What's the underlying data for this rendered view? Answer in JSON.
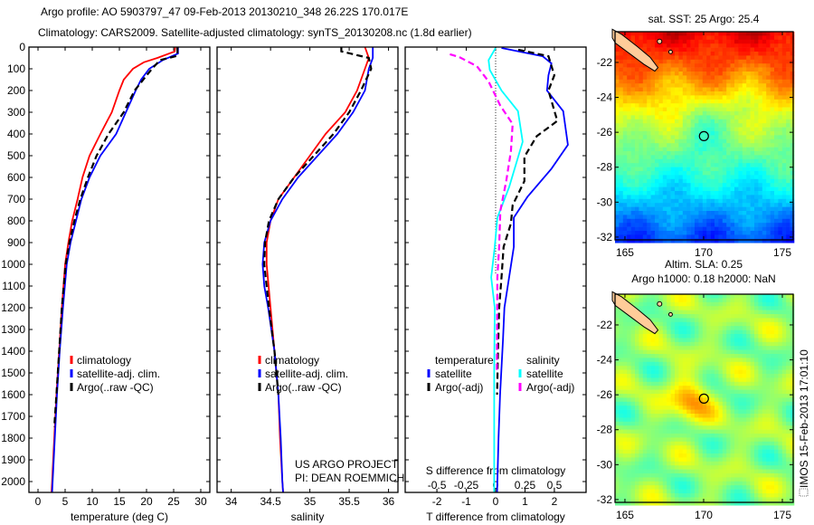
{
  "title": {
    "line1": "Argo profile: AO 5903797_47 09-Feb-2013 20130210_348 26.22S 170.017E",
    "line2": "Climatology: CARS2009. Satellite-adjusted climatology: synTS_20130208.nc (1.8d earlier)"
  },
  "credit": {
    "line1": "US ARGO PROJECT",
    "line2": "PI: DEAN ROEMMICH"
  },
  "timestamp": "IMOS 15-Feb-2013 17:01:10",
  "colors": {
    "climatology": "#ff0000",
    "satellite": "#0000ff",
    "argo": "#000000",
    "sal_satellite": "#00ffff",
    "sal_argo": "#ff00ff"
  },
  "chart_data": [
    {
      "type": "line",
      "xlabel": "temperature (deg C)",
      "xlim": [
        -1.67,
        31.67
      ],
      "ylim": [
        2050,
        0
      ],
      "xticks": [
        "0",
        "5",
        "10",
        "15",
        "20",
        "25",
        "30"
      ],
      "yticks": [
        "0",
        "100",
        "200",
        "300",
        "400",
        "500",
        "600",
        "700",
        "800",
        "900",
        "1000",
        "1100",
        "1200",
        "1300",
        "1400",
        "1500",
        "1600",
        "1700",
        "1800",
        "1900",
        "2000"
      ],
      "legend": [
        "climatology",
        "satellite-adj. clim.",
        "Argo(..raw -QC)"
      ],
      "series": [
        {
          "name": "climatology",
          "color": "#ff0000",
          "dash": false,
          "points": [
            [
              25.3,
              0
            ],
            [
              25.2,
              20
            ],
            [
              22,
              50
            ],
            [
              19.5,
              70
            ],
            [
              17.5,
              100
            ],
            [
              15.8,
              150
            ],
            [
              15,
              200
            ],
            [
              13.6,
              300
            ],
            [
              11.5,
              400
            ],
            [
              9.5,
              500
            ],
            [
              8.2,
              600
            ],
            [
              7.3,
              700
            ],
            [
              6.3,
              800
            ],
            [
              5.6,
              900
            ],
            [
              5.0,
              1000
            ],
            [
              4.4,
              1200
            ],
            [
              3.9,
              1400
            ],
            [
              3.4,
              1600
            ],
            [
              3.0,
              1800
            ],
            [
              2.6,
              2000
            ],
            [
              2.5,
              2050
            ]
          ]
        },
        {
          "name": "satellite-adj. clim.",
          "color": "#0000ff",
          "dash": false,
          "points": [
            [
              25.8,
              0
            ],
            [
              25.8,
              30
            ],
            [
              23,
              60
            ],
            [
              20.5,
              100
            ],
            [
              19,
              150
            ],
            [
              18,
              200
            ],
            [
              16.2,
              300
            ],
            [
              14.4,
              400
            ],
            [
              11.5,
              500
            ],
            [
              9.5,
              600
            ],
            [
              8,
              700
            ],
            [
              7,
              800
            ],
            [
              6,
              900
            ],
            [
              5.3,
              1000
            ],
            [
              4.6,
              1200
            ],
            [
              4.0,
              1400
            ],
            [
              3.5,
              1600
            ],
            [
              3.1,
              1800
            ],
            [
              2.7,
              2000
            ],
            [
              2.6,
              2050
            ]
          ]
        },
        {
          "name": "Argo(..raw -QC)",
          "color": "#000000",
          "dash": true,
          "points": [
            [
              25.7,
              0
            ],
            [
              25.7,
              40
            ],
            [
              22.5,
              60
            ],
            [
              21,
              100
            ],
            [
              17.8,
              200
            ],
            [
              15.8,
              300
            ],
            [
              13,
              400
            ],
            [
              10.8,
              500
            ],
            [
              9.2,
              600
            ],
            [
              7.8,
              700
            ],
            [
              6.7,
              800
            ],
            [
              5.8,
              900
            ],
            [
              5.1,
              1000
            ],
            [
              4.4,
              1200
            ],
            [
              3.9,
              1400
            ],
            [
              3.4,
              1600
            ],
            [
              3.0,
              1750
            ]
          ]
        }
      ]
    },
    {
      "type": "line",
      "xlabel": "salinity",
      "xlim": [
        33.82,
        36.12
      ],
      "ylim": [
        2050,
        0
      ],
      "xticks": [
        "34",
        "34.5",
        "35",
        "35.5",
        "36"
      ],
      "legend": [
        "climatology",
        "satellite-adj. clim.",
        "Argo(..raw -QC)"
      ],
      "series": [
        {
          "name": "climatology",
          "color": "#ff0000",
          "dash": false,
          "points": [
            [
              35.7,
              0
            ],
            [
              35.75,
              50
            ],
            [
              35.7,
              100
            ],
            [
              35.6,
              200
            ],
            [
              35.45,
              300
            ],
            [
              35.2,
              400
            ],
            [
              35.0,
              500
            ],
            [
              34.8,
              600
            ],
            [
              34.6,
              700
            ],
            [
              34.5,
              800
            ],
            [
              34.45,
              900
            ],
            [
              34.45,
              1000
            ],
            [
              34.5,
              1200
            ],
            [
              34.55,
              1400
            ],
            [
              34.6,
              1600
            ],
            [
              34.62,
              1800
            ],
            [
              34.65,
              2000
            ],
            [
              34.66,
              2050
            ]
          ]
        },
        {
          "name": "satellite-adj. clim.",
          "color": "#0000ff",
          "dash": false,
          "points": [
            [
              35.8,
              0
            ],
            [
              35.8,
              50
            ],
            [
              35.75,
              100
            ],
            [
              35.7,
              200
            ],
            [
              35.55,
              300
            ],
            [
              35.35,
              400
            ],
            [
              35.1,
              500
            ],
            [
              34.85,
              600
            ],
            [
              34.65,
              700
            ],
            [
              34.5,
              800
            ],
            [
              34.42,
              900
            ],
            [
              34.4,
              1000
            ],
            [
              34.42,
              1100
            ],
            [
              34.47,
              1200
            ],
            [
              34.55,
              1400
            ],
            [
              34.6,
              1600
            ],
            [
              34.63,
              1800
            ],
            [
              34.65,
              2000
            ],
            [
              34.66,
              2050
            ]
          ]
        },
        {
          "name": "Argo(..raw -QC)",
          "color": "#000000",
          "dash": true,
          "points": [
            [
              35.4,
              0
            ],
            [
              35.4,
              20
            ],
            [
              35.75,
              50
            ],
            [
              35.78,
              100
            ],
            [
              35.65,
              200
            ],
            [
              35.5,
              300
            ],
            [
              35.3,
              400
            ],
            [
              35.05,
              500
            ],
            [
              34.8,
              600
            ],
            [
              34.6,
              700
            ],
            [
              34.48,
              800
            ],
            [
              34.43,
              900
            ],
            [
              34.42,
              1000
            ],
            [
              34.48,
              1200
            ],
            [
              34.55,
              1400
            ],
            [
              34.6,
              1600
            ]
          ]
        }
      ]
    },
    {
      "type": "line",
      "xlabel": "T difference from climatology",
      "xlabel2": "S difference from climatology",
      "xlim": [
        -3.08,
        3.08
      ],
      "xlim_s": [
        -0.77,
        0.77
      ],
      "ylim": [
        2050,
        0
      ],
      "xticks": [
        "-2",
        "-1",
        "0",
        "1",
        "2"
      ],
      "xticks_s": [
        "-0.5",
        "-0.25",
        "0",
        "0.25",
        "0.5"
      ],
      "legend": {
        "temperature_title": "temperature",
        "salinity_title": "salinity",
        "satellite": "satellite",
        "argo": "Argo(-adj)"
      },
      "series": [
        {
          "name": "temperature satellite",
          "axis": "T",
          "color": "#0000ff",
          "dash": false,
          "points": [
            [
              0.2,
              4
            ],
            [
              1.6,
              42
            ],
            [
              1.9,
              75
            ],
            [
              1.8,
              130
            ],
            [
              1.75,
              200
            ],
            [
              2.3,
              295
            ],
            [
              2.46,
              450
            ],
            [
              1.9,
              560
            ],
            [
              1.08,
              690
            ],
            [
              0.62,
              785
            ],
            [
              0.62,
              920
            ],
            [
              0.46,
              1060
            ],
            [
              0.3,
              1200
            ],
            [
              0.25,
              1350
            ],
            [
              0.15,
              1600
            ],
            [
              0.1,
              1800
            ],
            [
              0.05,
              2050
            ]
          ]
        },
        {
          "name": "temperature Argo(-adj)",
          "axis": "T",
          "color": "#000000",
          "dash": true,
          "points": [
            [
              0.77,
              12
            ],
            [
              1.8,
              42
            ],
            [
              2.0,
              130
            ],
            [
              1.8,
              200
            ],
            [
              2.1,
              340
            ],
            [
              1.4,
              410
            ],
            [
              0.98,
              505
            ],
            [
              0.98,
              617
            ],
            [
              0.58,
              728
            ],
            [
              0.52,
              812
            ],
            [
              0.27,
              920
            ],
            [
              0.2,
              1060
            ],
            [
              0.12,
              1200
            ],
            [
              0.08,
              1400
            ],
            [
              0.05,
              1600
            ]
          ]
        },
        {
          "name": "salinity satellite",
          "axis": "S",
          "color": "#00ffff",
          "dash": false,
          "points": [
            [
              0,
              4
            ],
            [
              -0.06,
              60
            ],
            [
              -0.05,
              105
            ],
            [
              0.05,
              200
            ],
            [
              0.19,
              295
            ],
            [
              0.23,
              436
            ],
            [
              0.115,
              645
            ],
            [
              0.015,
              785
            ],
            [
              -0.008,
              920
            ],
            [
              -0.038,
              1060
            ],
            [
              -0.008,
              1200
            ],
            [
              -0.012,
              1500
            ],
            [
              -0.012,
              2050
            ]
          ]
        },
        {
          "name": "salinity Argo(-adj)",
          "axis": "S",
          "color": "#ff00ff",
          "dash": true,
          "points": [
            [
              -0.39,
              33
            ],
            [
              -0.31,
              46
            ],
            [
              -0.16,
              88
            ],
            [
              -0.06,
              158
            ],
            [
              0.04,
              270
            ],
            [
              0.145,
              354
            ],
            [
              0.13,
              479
            ],
            [
              0.09,
              617
            ],
            [
              0.04,
              754
            ],
            [
              0.03,
              920
            ],
            [
              0.015,
              1060
            ],
            [
              0.012,
              1300
            ],
            [
              0.01,
              1500
            ]
          ]
        }
      ]
    },
    {
      "type": "heatmap",
      "field": "SST",
      "title": "sat. SST: 25 Argo: 25.4",
      "lonlim": [
        164.37,
        175.69
      ],
      "latlim": [
        -32.16,
        -20.24
      ],
      "xticks": [
        "165",
        "170",
        "175"
      ],
      "yticks": [
        "-22",
        "-24",
        "-26",
        "-28",
        "-30",
        "-32"
      ],
      "argo_position": {
        "lon": 170.017,
        "lat": -26.22
      }
    },
    {
      "type": "heatmap",
      "field": "SLA",
      "title": "Altim. SLA: 0.25",
      "subtitle": "Argo h1000: 0.18 h2000: NaN",
      "lonlim": [
        164.37,
        175.69
      ],
      "latlim": [
        -32.16,
        -20.24
      ],
      "xticks": [
        "165",
        "170",
        "175"
      ],
      "yticks": [
        "-22",
        "-24",
        "-26",
        "-28",
        "-30",
        "-32"
      ],
      "argo_position": {
        "lon": 170.017,
        "lat": -26.22
      }
    }
  ]
}
